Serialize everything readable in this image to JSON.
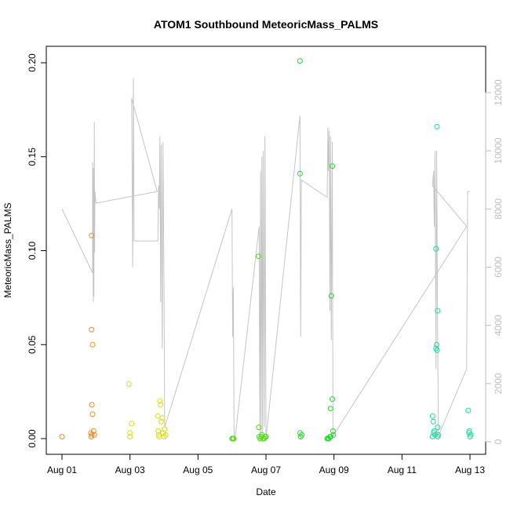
{
  "chart_data": {
    "type": "scatter",
    "title": "ATOM1 Southbound MeteoricMass_PALMS",
    "xlabel": "Date",
    "ylabel": "MeteoricMass_PALMS",
    "xlim": [
      0,
      12.4
    ],
    "ylim": [
      0,
      0.2
    ],
    "y2lim": [
      0,
      12000
    ],
    "x_ticks": [
      {
        "value": 0,
        "label": "Aug 01"
      },
      {
        "value": 2,
        "label": "Aug 03"
      },
      {
        "value": 4,
        "label": "Aug 05"
      },
      {
        "value": 6,
        "label": "Aug 07"
      },
      {
        "value": 8,
        "label": "Aug 09"
      },
      {
        "value": 10,
        "label": "Aug 11"
      },
      {
        "value": 12,
        "label": "Aug 13"
      }
    ],
    "y_ticks": [
      {
        "value": 0.0,
        "label": "0.00"
      },
      {
        "value": 0.05,
        "label": "0.05"
      },
      {
        "value": 0.1,
        "label": "0.10"
      },
      {
        "value": 0.15,
        "label": "0.15"
      },
      {
        "value": 0.2,
        "label": "0.20"
      }
    ],
    "y2_ticks": [
      {
        "value": 0,
        "label": "0"
      },
      {
        "value": 2000,
        "label": "2000"
      },
      {
        "value": 4000,
        "label": "4000"
      },
      {
        "value": 6000,
        "label": "6000"
      },
      {
        "value": 8000,
        "label": "8000"
      },
      {
        "value": 10000,
        "label": "10000"
      },
      {
        "value": 12000,
        "label": "12000"
      }
    ],
    "series": [
      {
        "color": "#f08c1e",
        "points": [
          [
            0.0,
            0.001
          ],
          [
            0.87,
            0.108
          ],
          [
            0.87,
            0.058
          ],
          [
            0.88,
            0.018
          ],
          [
            0.9,
            0.05
          ],
          [
            0.9,
            0.013
          ],
          [
            0.85,
            0.003
          ],
          [
            0.88,
            0.002
          ],
          [
            0.86,
            0.001
          ],
          [
            0.93,
            0.004
          ],
          [
            0.95,
            0.002
          ]
        ]
      },
      {
        "color": "#dcdc14",
        "points": [
          [
            1.97,
            0.029
          ],
          [
            2.0,
            0.003
          ],
          [
            2.0,
            0.001
          ],
          [
            2.05,
            0.008
          ],
          [
            2.82,
            0.012
          ],
          [
            2.83,
            0.004
          ],
          [
            2.85,
            0.002
          ],
          [
            2.86,
            0.001
          ],
          [
            2.88,
            0.02
          ],
          [
            2.9,
            0.018
          ],
          [
            2.92,
            0.009
          ],
          [
            2.95,
            0.011
          ],
          [
            2.97,
            0.003
          ],
          [
            3.0,
            0.001
          ],
          [
            3.02,
            0.005
          ],
          [
            3.05,
            0.002
          ]
        ]
      },
      {
        "color": "#50dc14",
        "points": [
          [
            5.0,
            0.0
          ],
          [
            5.03,
            0.0
          ],
          [
            5.05,
            0.0
          ],
          [
            5.78,
            0.097
          ],
          [
            5.79,
            0.006
          ],
          [
            5.8,
            0.001
          ],
          [
            5.83,
            0.0
          ],
          [
            5.86,
            0.001
          ],
          [
            5.88,
            0.002
          ],
          [
            5.92,
            0.0
          ],
          [
            5.95,
            0.0
          ],
          [
            5.98,
            0.001
          ],
          [
            6.0,
            0.001
          ]
        ]
      },
      {
        "color": "#1edc28",
        "points": [
          [
            7.0,
            0.201
          ],
          [
            7.0,
            0.141
          ],
          [
            7.0,
            0.003
          ],
          [
            7.02,
            0.001
          ],
          [
            7.05,
            0.002
          ],
          [
            7.8,
            0.0
          ],
          [
            7.82,
            0.0
          ],
          [
            7.85,
            0.0
          ],
          [
            7.88,
            0.001
          ],
          [
            7.9,
            0.016
          ],
          [
            7.92,
            0.076
          ],
          [
            7.95,
            0.145
          ],
          [
            7.95,
            0.021
          ],
          [
            7.97,
            0.004
          ],
          [
            7.98,
            0.002
          ],
          [
            7.9,
            0.001
          ]
        ]
      },
      {
        "color": "#1edca0",
        "points": [
          [
            11.0,
            0.101
          ],
          [
            11.03,
            0.166
          ],
          [
            11.05,
            0.068
          ],
          [
            10.9,
            0.012
          ],
          [
            10.92,
            0.009
          ],
          [
            10.95,
            0.004
          ],
          [
            10.93,
            0.003
          ],
          [
            10.97,
            0.002
          ],
          [
            10.9,
            0.001
          ],
          [
            11.02,
            0.05
          ],
          [
            11.0,
            0.048
          ],
          [
            11.03,
            0.047
          ],
          [
            11.05,
            0.006
          ],
          [
            11.07,
            0.002
          ],
          [
            11.05,
            0.001
          ],
          [
            11.95,
            0.015
          ],
          [
            11.97,
            0.003
          ],
          [
            12.0,
            0.001
          ],
          [
            11.98,
            0.004
          ],
          [
            12.02,
            0.002
          ]
        ]
      }
    ],
    "altitude_trace": {
      "color": "#c4c4c4",
      "points": [
        [
          0.0,
          8000
        ],
        [
          0.9,
          5800
        ],
        [
          0.9,
          9600
        ],
        [
          0.92,
          4800
        ],
        [
          0.92,
          9400
        ],
        [
          0.94,
          5000
        ],
        [
          0.95,
          11000
        ],
        [
          0.96,
          6500
        ],
        [
          0.97,
          8600
        ],
        [
          1.0,
          8200
        ],
        [
          2.8,
          8600
        ],
        [
          2.05,
          11800
        ],
        [
          2.08,
          6000
        ],
        [
          2.1,
          12500
        ],
        [
          2.12,
          6900
        ],
        [
          2.82,
          6900
        ],
        [
          2.84,
          8800
        ],
        [
          2.86,
          8000
        ],
        [
          2.88,
          10500
        ],
        [
          2.9,
          4800
        ],
        [
          2.92,
          10200
        ],
        [
          2.95,
          3200
        ],
        [
          2.97,
          10300
        ],
        [
          3.0,
          5500
        ],
        [
          3.02,
          500
        ],
        [
          5.0,
          8000
        ],
        [
          5.02,
          3600
        ],
        [
          5.04,
          5300
        ],
        [
          5.06,
          400
        ],
        [
          5.08,
          0
        ],
        [
          5.8,
          7400
        ],
        [
          5.82,
          0
        ],
        [
          5.84,
          9300
        ],
        [
          5.86,
          300
        ],
        [
          5.88,
          9800
        ],
        [
          5.9,
          200
        ],
        [
          5.92,
          10000
        ],
        [
          5.95,
          500
        ],
        [
          5.97,
          10500
        ],
        [
          6.0,
          100
        ],
        [
          7.0,
          11200
        ],
        [
          7.02,
          3600
        ],
        [
          7.04,
          9000
        ],
        [
          7.8,
          8400
        ],
        [
          7.82,
          10800
        ],
        [
          7.84,
          9300
        ],
        [
          7.86,
          10700
        ],
        [
          7.88,
          4500
        ],
        [
          7.9,
          10500
        ],
        [
          7.92,
          3500
        ],
        [
          7.95,
          10300
        ],
        [
          7.97,
          200
        ],
        [
          11.9,
          7400
        ],
        [
          10.9,
          8800
        ],
        [
          10.93,
          9300
        ],
        [
          10.95,
          7400
        ],
        [
          10.97,
          10000
        ],
        [
          11.0,
          2500
        ],
        [
          11.02,
          10000
        ],
        [
          11.05,
          3900
        ],
        [
          11.07,
          200
        ],
        [
          11.9,
          2500
        ],
        [
          11.93,
          8600
        ],
        [
          11.96,
          8600
        ],
        [
          12.0,
          8600
        ]
      ]
    }
  }
}
